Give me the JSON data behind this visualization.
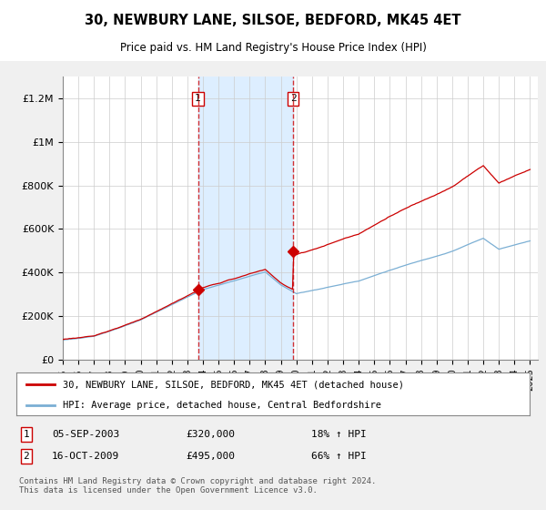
{
  "title": "30, NEWBURY LANE, SILSOE, BEDFORD, MK45 4ET",
  "subtitle": "Price paid vs. HM Land Registry's House Price Index (HPI)",
  "ylabel_ticks": [
    "£0",
    "£200K",
    "£400K",
    "£600K",
    "£800K",
    "£1M",
    "£1.2M"
  ],
  "ylim": [
    0,
    1300000
  ],
  "xlim_start": 1995,
  "xlim_end": 2025.5,
  "sale1_x": 2003.68,
  "sale1_y": 320000,
  "sale2_x": 2009.79,
  "sale2_y": 495000,
  "line_color_red": "#cc0000",
  "line_color_blue": "#7bafd4",
  "shade_color": "#ddeeff",
  "grid_color": "#cccccc",
  "bg_color": "#f0f0f0",
  "plot_bg_color": "#ffffff",
  "legend_line1": "30, NEWBURY LANE, SILSOE, BEDFORD, MK45 4ET (detached house)",
  "legend_line2": "HPI: Average price, detached house, Central Bedfordshire",
  "table_row1": [
    "1",
    "05-SEP-2003",
    "£320,000",
    "18% ↑ HPI"
  ],
  "table_row2": [
    "2",
    "16-OCT-2009",
    "£495,000",
    "66% ↑ HPI"
  ],
  "footer": "Contains HM Land Registry data © Crown copyright and database right 2024.\nThis data is licensed under the Open Government Licence v3.0."
}
